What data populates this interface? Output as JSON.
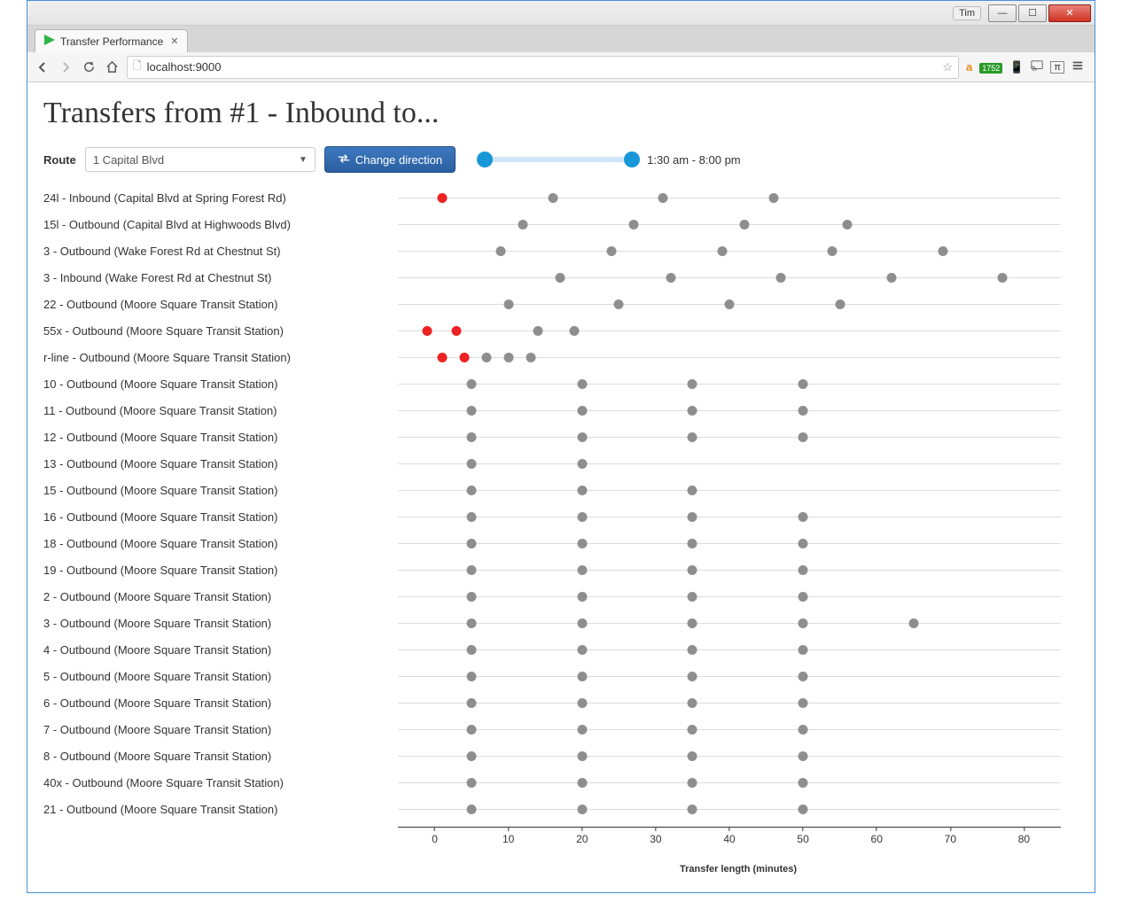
{
  "window": {
    "user_tag": "Tim",
    "min_label": "—",
    "max_label": "☐",
    "close_label": "✕"
  },
  "browser": {
    "tab_title": "Transfer Performance",
    "url": "localhost:9000",
    "star_icon": "☆",
    "ext_badge_text": "1752"
  },
  "page_title": "Transfers from #1 - Inbound to...",
  "controls": {
    "route_label": "Route",
    "route_selected": "1 Capital Blvd",
    "change_direction_label": "Change direction",
    "time_range_label": "1:30 am - 8:00 pm",
    "slider_left_pct": 0,
    "slider_right_pct": 92
  },
  "chart": {
    "x_min": -5,
    "x_max": 85,
    "tick_step": 10,
    "axis_title": "Transfer length (minutes)",
    "dot_color_normal": "#8e8e8e",
    "dot_color_warn": "#e22",
    "rows": [
      {
        "label": "24l - Inbound (Capital Blvd at Spring Forest Rd)",
        "points": [
          {
            "x": 1,
            "c": "warn"
          },
          {
            "x": 16,
            "c": "normal"
          },
          {
            "x": 31,
            "c": "normal"
          },
          {
            "x": 46,
            "c": "normal"
          }
        ]
      },
      {
        "label": "15l - Outbound (Capital Blvd at Highwoods Blvd)",
        "points": [
          {
            "x": 12,
            "c": "normal"
          },
          {
            "x": 27,
            "c": "normal"
          },
          {
            "x": 42,
            "c": "normal"
          },
          {
            "x": 56,
            "c": "normal"
          }
        ]
      },
      {
        "label": "3 - Outbound (Wake Forest Rd at Chestnut St)",
        "points": [
          {
            "x": 9,
            "c": "normal"
          },
          {
            "x": 24,
            "c": "normal"
          },
          {
            "x": 39,
            "c": "normal"
          },
          {
            "x": 54,
            "c": "normal"
          },
          {
            "x": 69,
            "c": "normal"
          }
        ]
      },
      {
        "label": "3 - Inbound (Wake Forest Rd at Chestnut St)",
        "points": [
          {
            "x": 17,
            "c": "normal"
          },
          {
            "x": 32,
            "c": "normal"
          },
          {
            "x": 47,
            "c": "normal"
          },
          {
            "x": 62,
            "c": "normal"
          },
          {
            "x": 77,
            "c": "normal"
          }
        ]
      },
      {
        "label": "22 - Outbound (Moore Square Transit Station)",
        "points": [
          {
            "x": 10,
            "c": "normal"
          },
          {
            "x": 25,
            "c": "normal"
          },
          {
            "x": 40,
            "c": "normal"
          },
          {
            "x": 55,
            "c": "normal"
          }
        ]
      },
      {
        "label": "55x - Outbound (Moore Square Transit Station)",
        "points": [
          {
            "x": -1,
            "c": "warn"
          },
          {
            "x": 3,
            "c": "warn"
          },
          {
            "x": 14,
            "c": "normal"
          },
          {
            "x": 19,
            "c": "normal"
          }
        ]
      },
      {
        "label": "r-line - Outbound (Moore Square Transit Station)",
        "points": [
          {
            "x": 1,
            "c": "warn"
          },
          {
            "x": 4,
            "c": "warn"
          },
          {
            "x": 7,
            "c": "normal"
          },
          {
            "x": 10,
            "c": "normal"
          },
          {
            "x": 13,
            "c": "normal"
          }
        ]
      },
      {
        "label": "10 - Outbound (Moore Square Transit Station)",
        "points": [
          {
            "x": 5,
            "c": "normal"
          },
          {
            "x": 20,
            "c": "normal"
          },
          {
            "x": 35,
            "c": "normal"
          },
          {
            "x": 50,
            "c": "normal"
          }
        ]
      },
      {
        "label": "11 - Outbound (Moore Square Transit Station)",
        "points": [
          {
            "x": 5,
            "c": "normal"
          },
          {
            "x": 20,
            "c": "normal"
          },
          {
            "x": 35,
            "c": "normal"
          },
          {
            "x": 50,
            "c": "normal"
          }
        ]
      },
      {
        "label": "12 - Outbound (Moore Square Transit Station)",
        "points": [
          {
            "x": 5,
            "c": "normal"
          },
          {
            "x": 20,
            "c": "normal"
          },
          {
            "x": 35,
            "c": "normal"
          },
          {
            "x": 50,
            "c": "normal"
          }
        ]
      },
      {
        "label": "13 - Outbound (Moore Square Transit Station)",
        "points": [
          {
            "x": 5,
            "c": "normal"
          },
          {
            "x": 20,
            "c": "normal"
          }
        ]
      },
      {
        "label": "15 - Outbound (Moore Square Transit Station)",
        "points": [
          {
            "x": 5,
            "c": "normal"
          },
          {
            "x": 20,
            "c": "normal"
          },
          {
            "x": 35,
            "c": "normal"
          }
        ]
      },
      {
        "label": "16 - Outbound (Moore Square Transit Station)",
        "points": [
          {
            "x": 5,
            "c": "normal"
          },
          {
            "x": 20,
            "c": "normal"
          },
          {
            "x": 35,
            "c": "normal"
          },
          {
            "x": 50,
            "c": "normal"
          }
        ]
      },
      {
        "label": "18 - Outbound (Moore Square Transit Station)",
        "points": [
          {
            "x": 5,
            "c": "normal"
          },
          {
            "x": 20,
            "c": "normal"
          },
          {
            "x": 35,
            "c": "normal"
          },
          {
            "x": 50,
            "c": "normal"
          }
        ]
      },
      {
        "label": "19 - Outbound (Moore Square Transit Station)",
        "points": [
          {
            "x": 5,
            "c": "normal"
          },
          {
            "x": 20,
            "c": "normal"
          },
          {
            "x": 35,
            "c": "normal"
          },
          {
            "x": 50,
            "c": "normal"
          }
        ]
      },
      {
        "label": "2 - Outbound (Moore Square Transit Station)",
        "points": [
          {
            "x": 5,
            "c": "normal"
          },
          {
            "x": 20,
            "c": "normal"
          },
          {
            "x": 35,
            "c": "normal"
          },
          {
            "x": 50,
            "c": "normal"
          }
        ]
      },
      {
        "label": "3 - Outbound (Moore Square Transit Station)",
        "points": [
          {
            "x": 5,
            "c": "normal"
          },
          {
            "x": 20,
            "c": "normal"
          },
          {
            "x": 35,
            "c": "normal"
          },
          {
            "x": 50,
            "c": "normal"
          },
          {
            "x": 65,
            "c": "normal"
          }
        ]
      },
      {
        "label": "4 - Outbound (Moore Square Transit Station)",
        "points": [
          {
            "x": 5,
            "c": "normal"
          },
          {
            "x": 20,
            "c": "normal"
          },
          {
            "x": 35,
            "c": "normal"
          },
          {
            "x": 50,
            "c": "normal"
          }
        ]
      },
      {
        "label": "5 - Outbound (Moore Square Transit Station)",
        "points": [
          {
            "x": 5,
            "c": "normal"
          },
          {
            "x": 20,
            "c": "normal"
          },
          {
            "x": 35,
            "c": "normal"
          },
          {
            "x": 50,
            "c": "normal"
          }
        ]
      },
      {
        "label": "6 - Outbound (Moore Square Transit Station)",
        "points": [
          {
            "x": 5,
            "c": "normal"
          },
          {
            "x": 20,
            "c": "normal"
          },
          {
            "x": 35,
            "c": "normal"
          },
          {
            "x": 50,
            "c": "normal"
          }
        ]
      },
      {
        "label": "7 - Outbound (Moore Square Transit Station)",
        "points": [
          {
            "x": 5,
            "c": "normal"
          },
          {
            "x": 20,
            "c": "normal"
          },
          {
            "x": 35,
            "c": "normal"
          },
          {
            "x": 50,
            "c": "normal"
          }
        ]
      },
      {
        "label": "8 - Outbound (Moore Square Transit Station)",
        "points": [
          {
            "x": 5,
            "c": "normal"
          },
          {
            "x": 20,
            "c": "normal"
          },
          {
            "x": 35,
            "c": "normal"
          },
          {
            "x": 50,
            "c": "normal"
          }
        ]
      },
      {
        "label": "40x - Outbound (Moore Square Transit Station)",
        "points": [
          {
            "x": 5,
            "c": "normal"
          },
          {
            "x": 20,
            "c": "normal"
          },
          {
            "x": 35,
            "c": "normal"
          },
          {
            "x": 50,
            "c": "normal"
          }
        ]
      },
      {
        "label": "21 - Outbound (Moore Square Transit Station)",
        "points": [
          {
            "x": 5,
            "c": "normal"
          },
          {
            "x": 20,
            "c": "normal"
          },
          {
            "x": 35,
            "c": "normal"
          },
          {
            "x": 50,
            "c": "normal"
          }
        ]
      }
    ]
  }
}
